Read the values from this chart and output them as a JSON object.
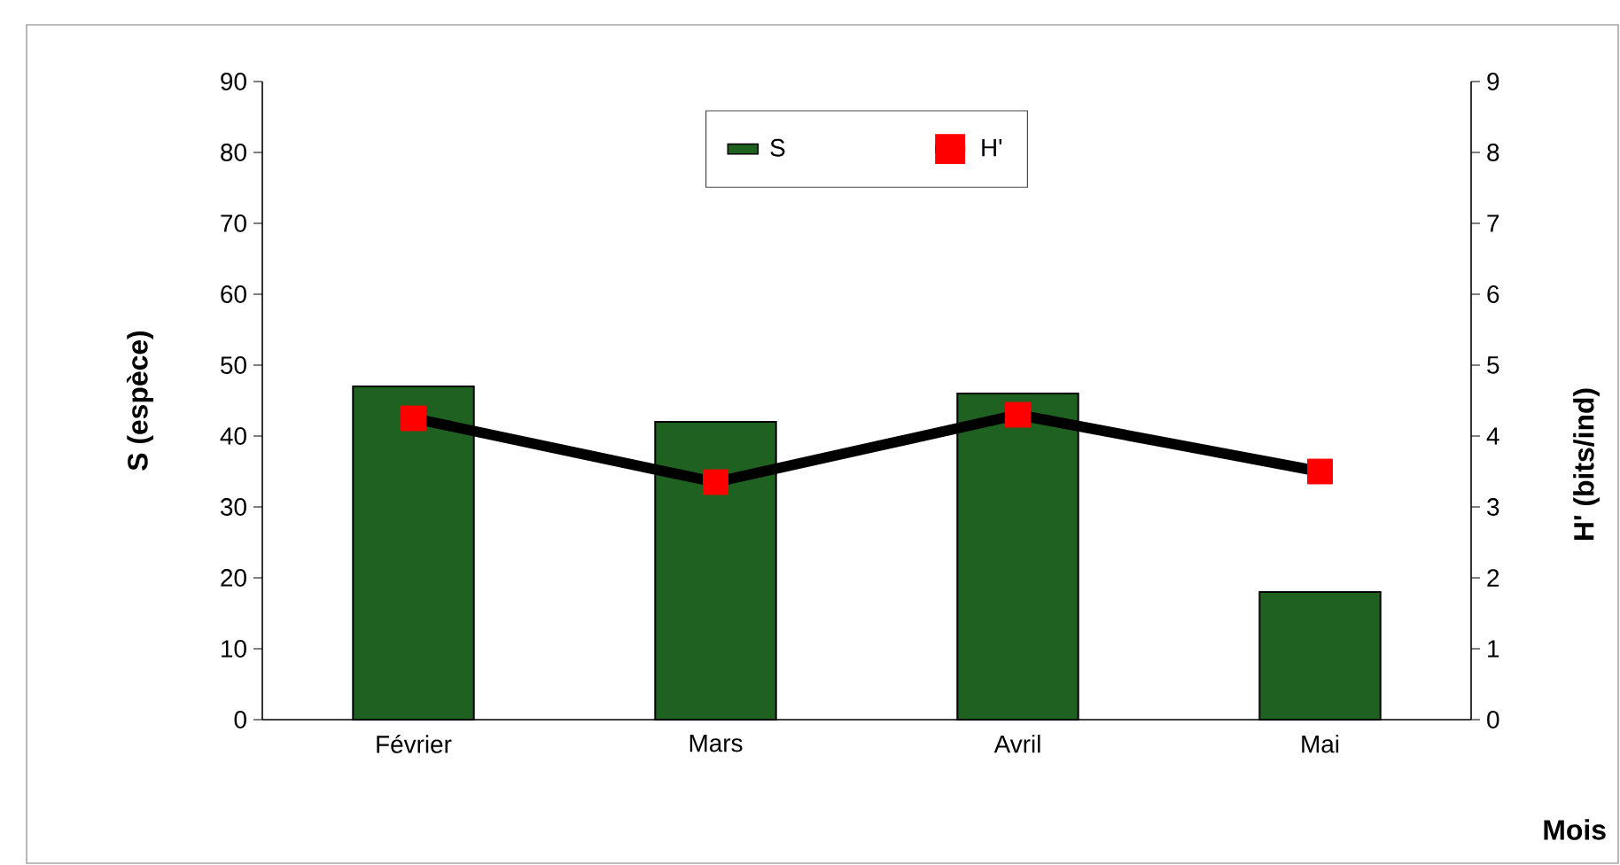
{
  "chart_data": {
    "type": "bar",
    "xlabel": "Mois",
    "ylabel": "S (espèce)",
    "y2label": "H' (bits/ind)",
    "categories": [
      "Février",
      "Mars",
      "Avril",
      "Mai"
    ],
    "series": [
      {
        "name": "S",
        "color": "#1f6120",
        "values": [
          47,
          42,
          46,
          18
        ]
      },
      {
        "name": "H'",
        "type": "line",
        "axis": "y2",
        "color": "#000000",
        "values": [
          4.25,
          3.35,
          4.3,
          3.5
        ]
      }
    ],
    "ylim": [
      0,
      90
    ],
    "yticks": [
      0,
      10,
      20,
      30,
      40,
      50,
      60,
      70,
      80,
      90
    ],
    "y2lim": [
      0,
      9
    ],
    "y2ticks": [
      0,
      1,
      2,
      3,
      4,
      5,
      6,
      7,
      8,
      9
    ],
    "legend": "top",
    "marker": "square",
    "line_style": "solid",
    "grid": false
  }
}
